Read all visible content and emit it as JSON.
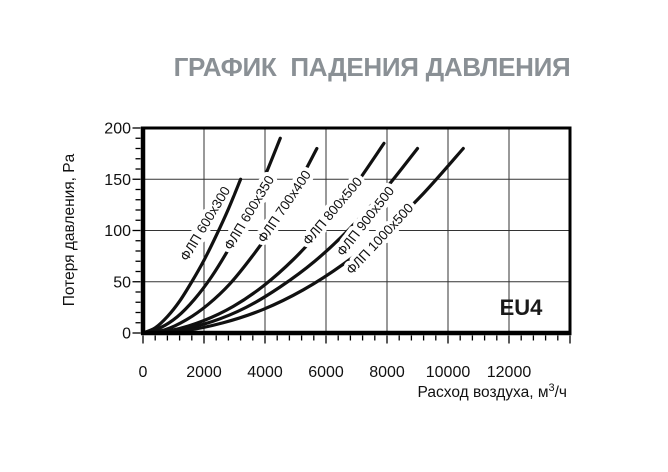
{
  "chart_data": {
    "type": "line",
    "title": "ГРАФИК  ПАДЕНИЯ ДАВЛЕНИЯ",
    "xlabel": "Расход воздуха, м³/ч",
    "xlabel_parts": {
      "pre": "Расход воздуха, м",
      "sup": "3",
      "post": "/ч"
    },
    "ylabel": "Потеря давления, Pa",
    "xlim": [
      0,
      14000
    ],
    "ylim": [
      0,
      200
    ],
    "x_major_tick_step": 2000,
    "x_minor_tick_step": 400,
    "y_major_tick_step": 50,
    "y_minor_tick_step": 10,
    "grid": true,
    "legend_position": "labels-inline-on-curves",
    "badge": "EU4",
    "x_ticks": [
      {
        "value": 0,
        "label": "0"
      },
      {
        "value": 2000,
        "label": "2000"
      },
      {
        "value": 4000,
        "label": "4000"
      },
      {
        "value": 6000,
        "label": "6000"
      },
      {
        "value": 8000,
        "label": "8000"
      },
      {
        "value": 10000,
        "label": "10000"
      },
      {
        "value": 12000,
        "label": "12000"
      }
    ],
    "y_ticks": [
      {
        "value": 0,
        "label": "0"
      },
      {
        "value": 50,
        "label": "50"
      },
      {
        "value": 100,
        "label": "100"
      },
      {
        "value": 150,
        "label": "150"
      },
      {
        "value": 200,
        "label": "200"
      }
    ],
    "series": [
      {
        "name": "ФЛП 600x300",
        "points": [
          [
            0,
            0
          ],
          [
            400,
            5
          ],
          [
            800,
            16
          ],
          [
            1200,
            31
          ],
          [
            1600,
            50
          ],
          [
            2000,
            71
          ],
          [
            2400,
            95
          ],
          [
            2800,
            121
          ],
          [
            3200,
            150
          ]
        ],
        "label": {
          "x": 209,
          "y": 226,
          "angle": -59
        }
      },
      {
        "name": "ФЛП 600x350",
        "points": [
          [
            0,
            0
          ],
          [
            560,
            5
          ],
          [
            1130,
            16
          ],
          [
            1690,
            33
          ],
          [
            2250,
            55
          ],
          [
            2810,
            82
          ],
          [
            3380,
            113
          ],
          [
            3940,
            149
          ],
          [
            4500,
            190
          ]
        ],
        "label": {
          "x": 253,
          "y": 215,
          "angle": -59
        }
      },
      {
        "name": "ФЛП 700x400",
        "points": [
          [
            0,
            0
          ],
          [
            710,
            3
          ],
          [
            1430,
            13
          ],
          [
            2140,
            28
          ],
          [
            2850,
            48
          ],
          [
            3560,
            74
          ],
          [
            4280,
            104
          ],
          [
            4990,
            140
          ],
          [
            5700,
            180
          ]
        ],
        "label": {
          "x": 288,
          "y": 209,
          "angle": -56
        }
      },
      {
        "name": "ФЛП 800x500",
        "points": [
          [
            0,
            0
          ],
          [
            990,
            3
          ],
          [
            1980,
            12
          ],
          [
            2960,
            26
          ],
          [
            3950,
            46
          ],
          [
            4940,
            72
          ],
          [
            5930,
            104
          ],
          [
            6910,
            142
          ],
          [
            7900,
            185
          ]
        ],
        "label": {
          "x": 336,
          "y": 214,
          "angle": -50
        }
      },
      {
        "name": "ФЛП 900x500",
        "points": [
          [
            0,
            0
          ],
          [
            1130,
            3
          ],
          [
            2250,
            11
          ],
          [
            3380,
            25
          ],
          [
            4500,
            45
          ],
          [
            5630,
            70
          ],
          [
            6750,
            101
          ],
          [
            7880,
            138
          ],
          [
            9000,
            180
          ]
        ],
        "label": {
          "x": 369,
          "y": 224,
          "angle": -52
        }
      },
      {
        "name": "ФЛП 1000x500",
        "points": [
          [
            0,
            0
          ],
          [
            1310,
            2
          ],
          [
            2630,
            10
          ],
          [
            3940,
            23
          ],
          [
            5250,
            42
          ],
          [
            6560,
            67
          ],
          [
            7880,
            98
          ],
          [
            9190,
            136
          ],
          [
            10500,
            180
          ]
        ],
        "label": {
          "x": 383,
          "y": 242,
          "angle": -47
        }
      }
    ]
  },
  "colors": {
    "title": "#8a9095",
    "axis": "#000000",
    "grid": "#333333",
    "curve": "#111111",
    "text": "#111111",
    "badge": "#1a1a1a",
    "label_halo": "#ffffff"
  }
}
